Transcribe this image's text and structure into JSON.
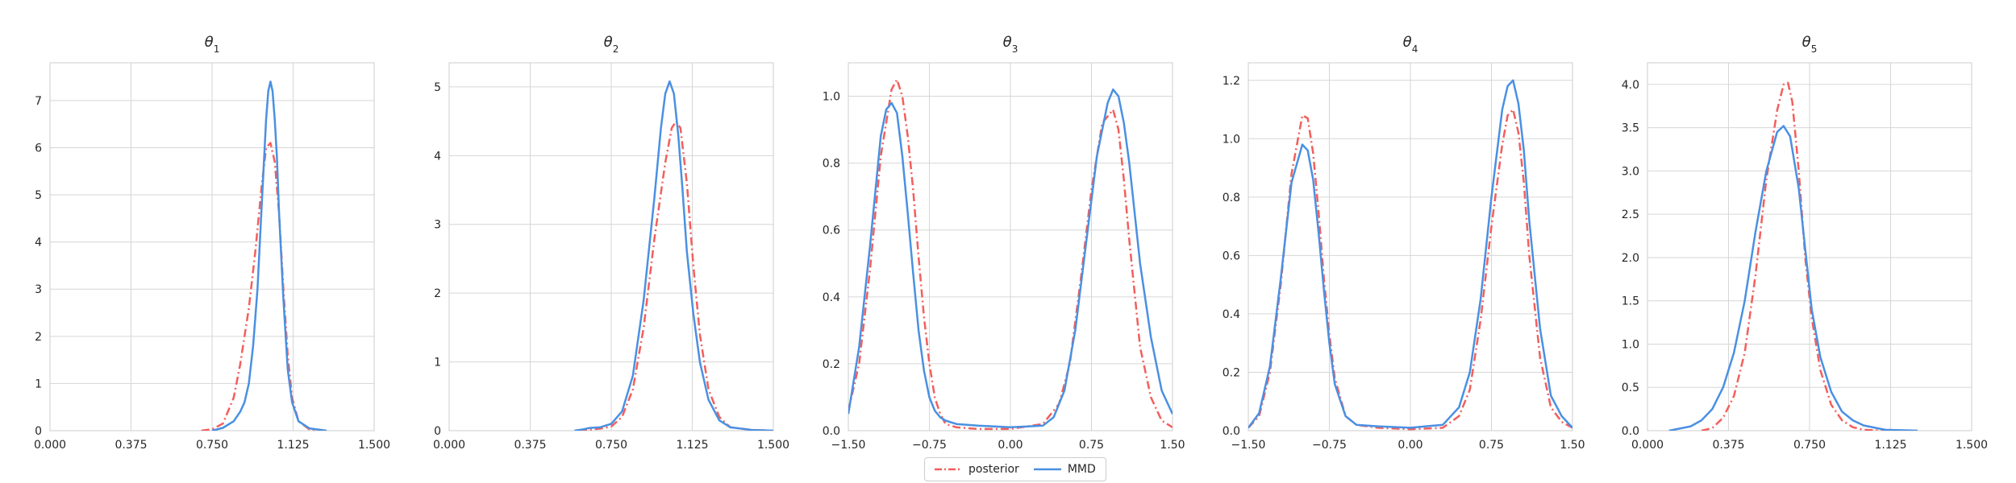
{
  "chart_data": {
    "type": "line",
    "legend": {
      "placement": "bottom-center",
      "entries": [
        {
          "name": "posterior",
          "color": "#f25f5c",
          "style": "dash-dot"
        },
        {
          "name": "MMD",
          "color": "#4a90e2",
          "style": "solid"
        }
      ]
    },
    "grid": true,
    "panels": [
      {
        "title": "θ1",
        "title_base": "θ",
        "title_sub": "1",
        "xlim": [
          0,
          1.5
        ],
        "ylim": [
          0,
          7.8
        ],
        "xticks": [
          0,
          0.375,
          0.75,
          1.125,
          1.5
        ],
        "xtick_labels": [
          "0.000",
          "0.375",
          "0.750",
          "1.125",
          "1.500"
        ],
        "yticks": [
          0,
          1,
          2,
          3,
          4,
          5,
          6,
          7
        ],
        "ytick_labels": [
          "0",
          "1",
          "2",
          "3",
          "4",
          "5",
          "6",
          "7"
        ],
        "series": [
          {
            "name": "posterior",
            "x": [
              0.7,
              0.75,
              0.8,
              0.85,
              0.88,
              0.92,
              0.95,
              0.98,
              1.0,
              1.02,
              1.04,
              1.06,
              1.08,
              1.1,
              1.12,
              1.15,
              1.2,
              1.25
            ],
            "y": [
              0.0,
              0.03,
              0.15,
              0.7,
              1.4,
              2.6,
              3.8,
              5.2,
              6.0,
              6.1,
              5.7,
              4.6,
              3.0,
              1.6,
              0.7,
              0.2,
              0.03,
              0.0
            ]
          },
          {
            "name": "MMD",
            "x": [
              0.75,
              0.8,
              0.85,
              0.88,
              0.9,
              0.92,
              0.94,
              0.96,
              0.98,
              1.0,
              1.01,
              1.02,
              1.03,
              1.04,
              1.05,
              1.06,
              1.08,
              1.1,
              1.12,
              1.15,
              1.2,
              1.28
            ],
            "y": [
              0.0,
              0.06,
              0.2,
              0.4,
              0.6,
              1.0,
              1.8,
              3.0,
              4.8,
              6.6,
              7.2,
              7.4,
              7.2,
              6.6,
              5.8,
              4.6,
              2.8,
              1.3,
              0.6,
              0.2,
              0.05,
              0.0
            ]
          }
        ]
      },
      {
        "title": "θ2",
        "title_base": "θ",
        "title_sub": "2",
        "xlim": [
          0,
          1.5
        ],
        "ylim": [
          0,
          5.35
        ],
        "xticks": [
          0,
          0.375,
          0.75,
          1.125,
          1.5
        ],
        "xtick_labels": [
          "0.000",
          "0.375",
          "0.750",
          "1.125",
          "1.500"
        ],
        "yticks": [
          0,
          1,
          2,
          3,
          4,
          5
        ],
        "ytick_labels": [
          "0",
          "1",
          "2",
          "3",
          "4",
          "5"
        ],
        "series": [
          {
            "name": "posterior",
            "x": [
              0.6,
              0.7,
              0.75,
              0.8,
              0.85,
              0.9,
              0.95,
              1.0,
              1.03,
              1.05,
              1.07,
              1.1,
              1.13,
              1.16,
              1.2,
              1.25,
              1.3,
              1.4,
              1.5
            ],
            "y": [
              0.0,
              0.03,
              0.06,
              0.2,
              0.6,
              1.5,
              2.8,
              3.9,
              4.4,
              4.5,
              4.4,
              3.6,
              2.4,
              1.4,
              0.6,
              0.2,
              0.05,
              0.01,
              0.0
            ]
          },
          {
            "name": "MMD",
            "x": [
              0.58,
              0.62,
              0.65,
              0.7,
              0.75,
              0.8,
              0.85,
              0.9,
              0.95,
              0.98,
              1.0,
              1.02,
              1.04,
              1.06,
              1.08,
              1.1,
              1.13,
              1.16,
              1.2,
              1.25,
              1.3,
              1.4,
              1.5
            ],
            "y": [
              0.0,
              0.02,
              0.04,
              0.05,
              0.1,
              0.28,
              0.8,
              1.9,
              3.4,
              4.4,
              4.9,
              5.08,
              4.9,
              4.3,
              3.5,
              2.6,
              1.7,
              1.0,
              0.45,
              0.15,
              0.05,
              0.01,
              0.0
            ]
          }
        ]
      },
      {
        "title": "θ3",
        "title_base": "θ",
        "title_sub": "3",
        "xlim": [
          -1.5,
          1.5
        ],
        "ylim": [
          0,
          1.1
        ],
        "xticks": [
          -1.5,
          -0.75,
          0,
          0.75,
          1.5
        ],
        "xtick_labels": [
          "−1.50",
          "−0.75",
          "0.00",
          "0.75",
          "1.50"
        ],
        "yticks": [
          0,
          0.2,
          0.4,
          0.6,
          0.8,
          1.0
        ],
        "ytick_labels": [
          "0.0",
          "0.2",
          "0.4",
          "0.6",
          "0.8",
          "1.0"
        ],
        "series": [
          {
            "name": "posterior",
            "x": [
              -1.5,
              -1.4,
              -1.3,
              -1.2,
              -1.1,
              -1.05,
              -1.0,
              -0.95,
              -0.9,
              -0.85,
              -0.8,
              -0.75,
              -0.7,
              -0.65,
              -0.6,
              -0.5,
              -0.3,
              0.0,
              0.3,
              0.45,
              0.55,
              0.65,
              0.75,
              0.85,
              0.95,
              1.0,
              1.05,
              1.1,
              1.2,
              1.3,
              1.4,
              1.5
            ],
            "y": [
              0.06,
              0.2,
              0.48,
              0.82,
              1.02,
              1.05,
              1.0,
              0.88,
              0.72,
              0.52,
              0.34,
              0.2,
              0.1,
              0.05,
              0.02,
              0.01,
              0.005,
              0.005,
              0.02,
              0.08,
              0.2,
              0.45,
              0.72,
              0.92,
              0.96,
              0.9,
              0.75,
              0.57,
              0.25,
              0.1,
              0.03,
              0.01
            ]
          },
          {
            "name": "MMD",
            "x": [
              -1.5,
              -1.4,
              -1.3,
              -1.2,
              -1.15,
              -1.1,
              -1.05,
              -1.0,
              -0.95,
              -0.9,
              -0.85,
              -0.8,
              -0.75,
              -0.7,
              -0.65,
              -0.6,
              -0.5,
              -0.3,
              0.0,
              0.3,
              0.4,
              0.5,
              0.6,
              0.7,
              0.8,
              0.9,
              0.95,
              1.0,
              1.05,
              1.1,
              1.2,
              1.3,
              1.4,
              1.5
            ],
            "y": [
              0.05,
              0.25,
              0.55,
              0.88,
              0.96,
              0.98,
              0.95,
              0.82,
              0.65,
              0.47,
              0.3,
              0.18,
              0.1,
              0.06,
              0.04,
              0.03,
              0.02,
              0.015,
              0.01,
              0.015,
              0.04,
              0.12,
              0.3,
              0.56,
              0.82,
              0.98,
              1.02,
              1.0,
              0.92,
              0.8,
              0.5,
              0.28,
              0.12,
              0.05
            ]
          }
        ]
      },
      {
        "title": "θ4",
        "title_base": "θ",
        "title_sub": "4",
        "xlim": [
          -1.5,
          1.5
        ],
        "ylim": [
          0,
          1.26
        ],
        "xticks": [
          -1.5,
          -0.75,
          0,
          0.75,
          1.5
        ],
        "xtick_labels": [
          "−1.50",
          "−0.75",
          "0.00",
          "0.75",
          "1.50"
        ],
        "yticks": [
          0,
          0.2,
          0.4,
          0.6,
          0.8,
          1.0,
          1.2
        ],
        "ytick_labels": [
          "0.0",
          "0.2",
          "0.4",
          "0.6",
          "0.8",
          "1.0",
          "1.2"
        ],
        "series": [
          {
            "name": "posterior",
            "x": [
              -1.5,
              -1.4,
              -1.3,
              -1.2,
              -1.1,
              -1.0,
              -0.95,
              -0.9,
              -0.85,
              -0.8,
              -0.75,
              -0.7,
              -0.6,
              -0.5,
              -0.3,
              0.0,
              0.3,
              0.45,
              0.55,
              0.65,
              0.75,
              0.85,
              0.9,
              0.95,
              1.0,
              1.05,
              1.1,
              1.2,
              1.3,
              1.4,
              1.5
            ],
            "y": [
              0.01,
              0.05,
              0.2,
              0.5,
              0.88,
              1.08,
              1.07,
              0.95,
              0.75,
              0.52,
              0.33,
              0.18,
              0.05,
              0.02,
              0.01,
              0.005,
              0.01,
              0.05,
              0.14,
              0.38,
              0.7,
              0.98,
              1.08,
              1.1,
              1.02,
              0.85,
              0.6,
              0.25,
              0.08,
              0.03,
              0.01
            ]
          },
          {
            "name": "MMD",
            "x": [
              -1.5,
              -1.4,
              -1.3,
              -1.2,
              -1.1,
              -1.0,
              -0.95,
              -0.9,
              -0.85,
              -0.8,
              -0.75,
              -0.7,
              -0.6,
              -0.5,
              -0.3,
              0.0,
              0.3,
              0.45,
              0.55,
              0.65,
              0.75,
              0.85,
              0.9,
              0.95,
              1.0,
              1.05,
              1.1,
              1.2,
              1.3,
              1.4,
              1.5
            ],
            "y": [
              0.01,
              0.06,
              0.22,
              0.52,
              0.85,
              0.98,
              0.96,
              0.86,
              0.68,
              0.48,
              0.3,
              0.16,
              0.05,
              0.02,
              0.015,
              0.01,
              0.02,
              0.08,
              0.2,
              0.45,
              0.8,
              1.1,
              1.18,
              1.2,
              1.12,
              0.96,
              0.72,
              0.35,
              0.12,
              0.05,
              0.01
            ]
          }
        ]
      },
      {
        "title": "θ5",
        "title_base": "θ",
        "title_sub": "5",
        "xlim": [
          0,
          1.5
        ],
        "ylim": [
          0,
          4.25
        ],
        "xticks": [
          0,
          0.375,
          0.75,
          1.125,
          1.5
        ],
        "xtick_labels": [
          "0.000",
          "0.375",
          "0.750",
          "1.125",
          "1.500"
        ],
        "yticks": [
          0,
          0.5,
          1.0,
          1.5,
          2.0,
          2.5,
          3.0,
          3.5,
          4.0
        ],
        "ytick_labels": [
          "0.0",
          "0.5",
          "1.0",
          "1.5",
          "2.0",
          "2.5",
          "3.0",
          "3.5",
          "4.0"
        ],
        "series": [
          {
            "name": "posterior",
            "x": [
              0.25,
              0.3,
              0.35,
              0.4,
              0.45,
              0.5,
              0.55,
              0.6,
              0.63,
              0.65,
              0.67,
              0.7,
              0.73,
              0.76,
              0.8,
              0.85,
              0.9,
              0.95,
              1.0,
              1.1
            ],
            "y": [
              0.0,
              0.03,
              0.15,
              0.4,
              0.9,
              1.8,
              2.9,
              3.7,
              4.0,
              4.02,
              3.8,
              3.0,
              2.0,
              1.3,
              0.7,
              0.3,
              0.12,
              0.04,
              0.01,
              0.0
            ]
          },
          {
            "name": "MMD",
            "x": [
              0.1,
              0.2,
              0.25,
              0.3,
              0.35,
              0.4,
              0.45,
              0.5,
              0.55,
              0.6,
              0.63,
              0.66,
              0.7,
              0.73,
              0.76,
              0.8,
              0.85,
              0.9,
              0.95,
              1.0,
              1.1,
              1.25
            ],
            "y": [
              0.0,
              0.05,
              0.12,
              0.25,
              0.5,
              0.9,
              1.5,
              2.3,
              3.0,
              3.45,
              3.52,
              3.4,
              2.8,
              2.1,
              1.4,
              0.85,
              0.45,
              0.22,
              0.12,
              0.06,
              0.01,
              0.0
            ]
          }
        ]
      }
    ]
  }
}
